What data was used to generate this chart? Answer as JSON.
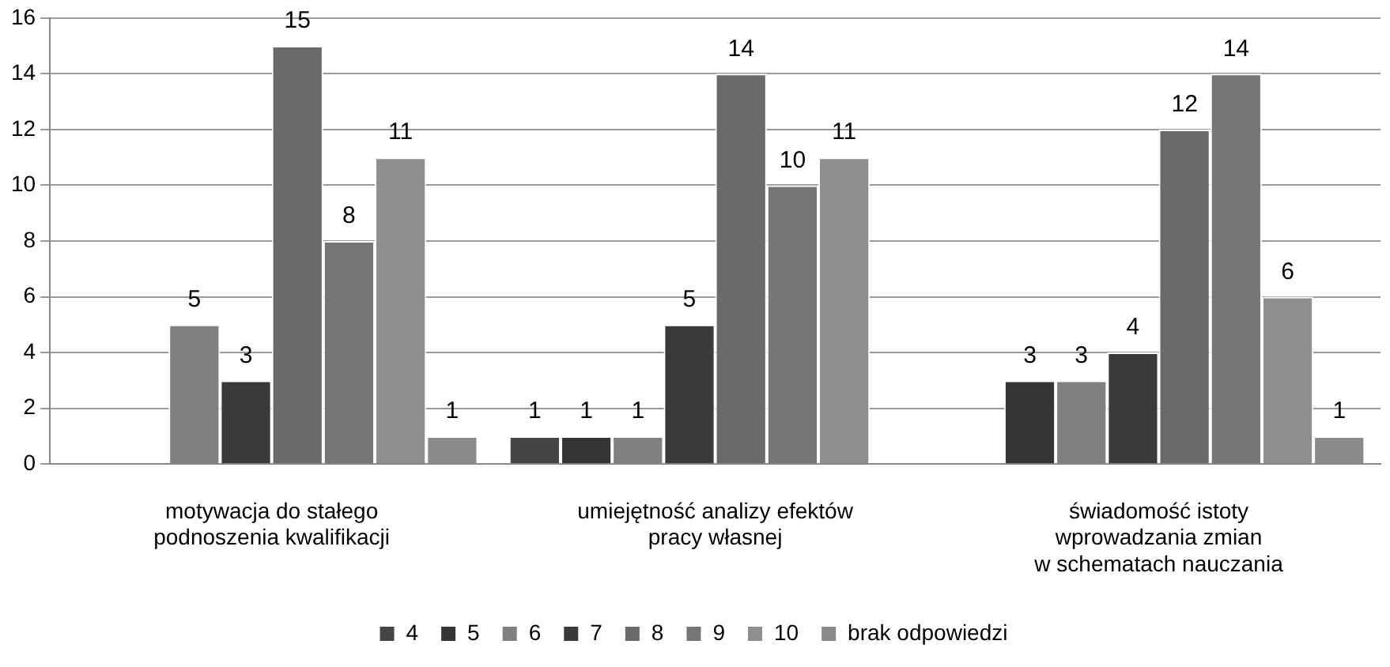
{
  "chart_data": {
    "type": "bar",
    "categories": [
      "motywacja do stałego\npodnoszenia kwalifikacji",
      "umiejętność analizy efektów\npracy własnej",
      "świadomość istoty\nwprowadzania zmian\nw schematach nauczania"
    ],
    "series": [
      {
        "name": "4",
        "color": "#454545",
        "values": [
          null,
          1,
          null
        ]
      },
      {
        "name": "5",
        "color": "#353535",
        "values": [
          null,
          1,
          3
        ]
      },
      {
        "name": "6",
        "color": "#808080",
        "values": [
          5,
          1,
          3
        ]
      },
      {
        "name": "7",
        "color": "#3a3a3a",
        "values": [
          3,
          5,
          4
        ]
      },
      {
        "name": "8",
        "color": "#6a6a6a",
        "values": [
          15,
          14,
          12
        ]
      },
      {
        "name": "9",
        "color": "#767676",
        "values": [
          8,
          10,
          14
        ]
      },
      {
        "name": "10",
        "color": "#8f8f8f",
        "values": [
          11,
          11,
          6
        ]
      },
      {
        "name": "brak odpowiedzi",
        "color": "#8a8a8a",
        "values": [
          1,
          null,
          1
        ]
      }
    ],
    "ylim": [
      0,
      16
    ],
    "yticks": [
      0,
      2,
      4,
      6,
      8,
      10,
      12,
      14,
      16
    ],
    "grid": "y",
    "legend": "bottom",
    "data_labels": true
  }
}
